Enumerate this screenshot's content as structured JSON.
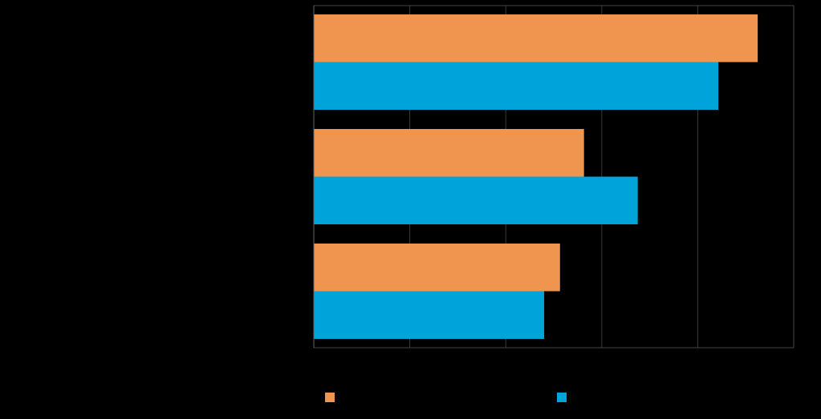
{
  "chart_data": {
    "type": "bar",
    "orientation": "horizontal",
    "categories": [
      "",
      "",
      ""
    ],
    "series": [
      {
        "color": "#F0954F",
        "values": [
          92.5,
          56.3,
          51.3
        ]
      },
      {
        "color": "#00A3DA",
        "values": [
          84.3,
          67.5,
          48.0
        ]
      }
    ],
    "xlim": [
      0,
      100
    ],
    "grid": true,
    "legend_position": "bottom"
  }
}
